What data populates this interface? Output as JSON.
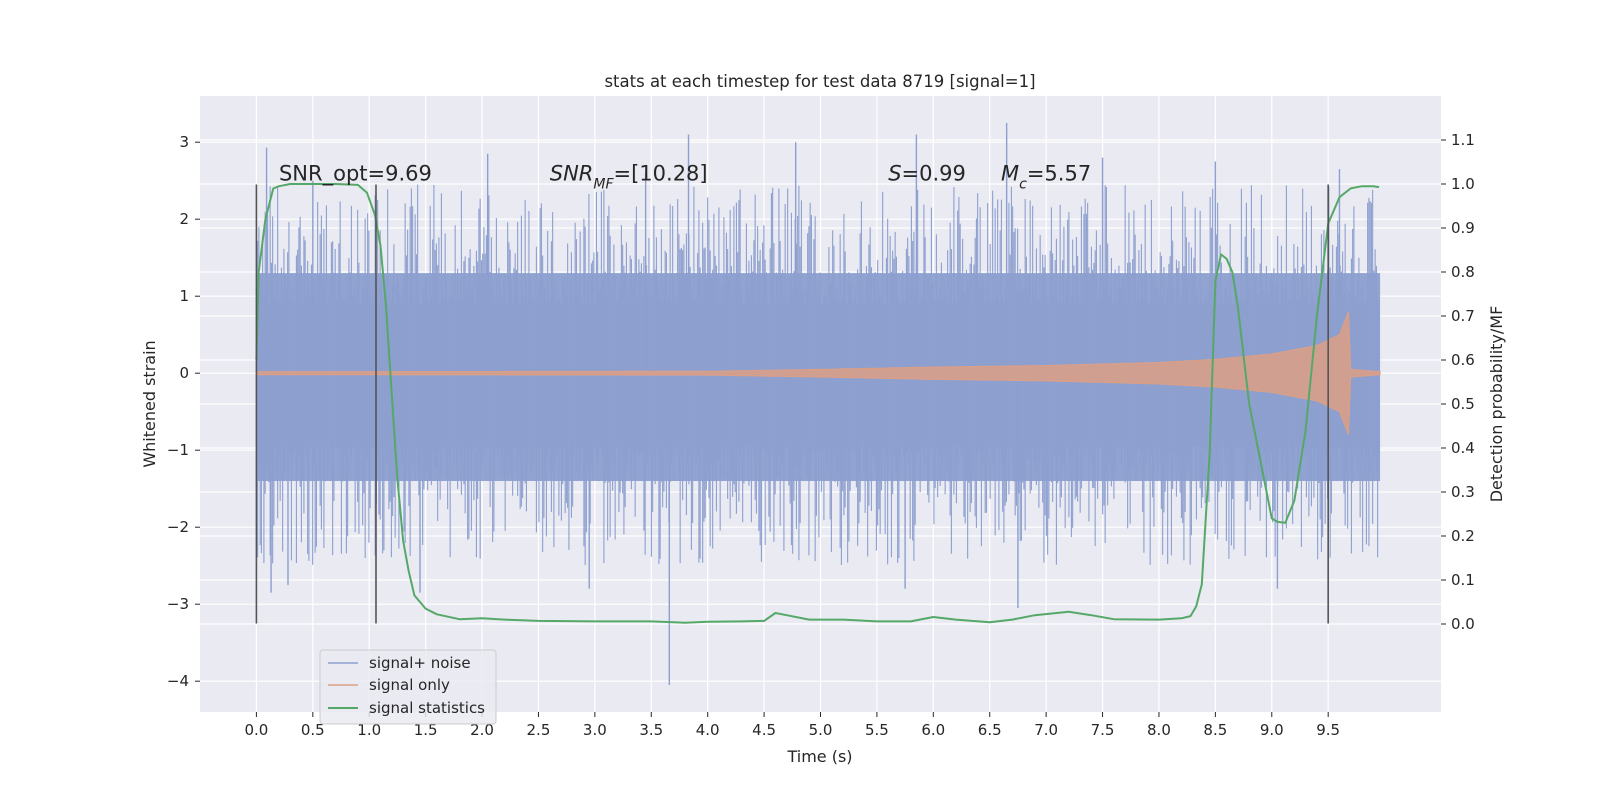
{
  "chart_data": {
    "type": "line",
    "title": "stats at each timestep for test data 8719 [signal=1]",
    "xlabel": "Time (s)",
    "ylabel_left": "Whitened strain",
    "ylabel_right": "Detection probability/MF",
    "xlim": [
      -0.5,
      10.5
    ],
    "ylim_left": [
      -4.4,
      3.6
    ],
    "ylim_right": [
      -0.2,
      1.2
    ],
    "x_ticks": [
      0.0,
      0.5,
      1.0,
      1.5,
      2.0,
      2.5,
      3.0,
      3.5,
      4.0,
      4.5,
      5.0,
      5.5,
      6.0,
      6.5,
      7.0,
      7.5,
      8.0,
      8.5,
      9.0,
      9.5
    ],
    "x_tick_labels": [
      "0.0",
      "0.5",
      "1.0",
      "1.5",
      "2.0",
      "2.5",
      "3.0",
      "3.5",
      "4.0",
      "4.5",
      "5.0",
      "5.5",
      "6.0",
      "6.5",
      "7.0",
      "7.5",
      "8.0",
      "8.5",
      "9.0",
      "9.5"
    ],
    "y_left_ticks": [
      -4,
      -3,
      -2,
      -1,
      0,
      1,
      2,
      3
    ],
    "y_left_tick_labels": [
      "−4",
      "−3",
      "−2",
      "−1",
      "0",
      "1",
      "2",
      "3"
    ],
    "y_right_ticks": [
      0.0,
      0.1,
      0.2,
      0.3,
      0.4,
      0.5,
      0.6,
      0.7,
      0.8,
      0.9,
      1.0,
      1.1
    ],
    "y_right_tick_labels": [
      "0.0",
      "0.1",
      "0.2",
      "0.3",
      "0.4",
      "0.5",
      "0.6",
      "0.7",
      "0.8",
      "0.9",
      "1.0",
      "1.1"
    ],
    "grid": true,
    "legend_position": "lower-left",
    "annotations": [
      {
        "parts": [
          {
            "text": "SNR_opt=9.69"
          }
        ],
        "x": 0.2,
        "y": 2.5
      },
      {
        "parts": [
          {
            "text": "SNR",
            "italic": true
          },
          {
            "text": "MF",
            "italic": true,
            "sub": true
          },
          {
            "text": "=[10.28]"
          }
        ],
        "x": 2.6,
        "y": 2.5
      },
      {
        "parts": [
          {
            "text": "S",
            "italic": true
          },
          {
            "text": "=0.99"
          }
        ],
        "x": 5.6,
        "y": 2.5
      },
      {
        "parts": [
          {
            "text": "M",
            "italic": true
          },
          {
            "text": "c",
            "italic": true,
            "sub": true
          },
          {
            "text": "=5.57"
          }
        ],
        "x": 6.6,
        "y": 2.5
      }
    ],
    "vertical_markers": {
      "x": [
        0.0,
        1.06,
        9.5
      ],
      "y_range": [
        -3.25,
        2.45
      ],
      "color": "#555555"
    },
    "series": [
      {
        "name": "signal+ noise",
        "color": "#8c9fcf",
        "axis": "left",
        "noise_model": {
          "t_start": 0.0,
          "t_end": 9.96,
          "band_low": -1.4,
          "band_high": 1.3
        },
        "peaks": [
          {
            "x": 0.09,
            "y": 2.93
          },
          {
            "x": 0.13,
            "y": -2.85
          },
          {
            "x": 0.28,
            "y": -2.75
          },
          {
            "x": 0.5,
            "y": 2.5
          },
          {
            "x": 1.45,
            "y": -2.85
          },
          {
            "x": 2.05,
            "y": 2.85
          },
          {
            "x": 2.95,
            "y": -2.8
          },
          {
            "x": 3.45,
            "y": 2.6
          },
          {
            "x": 3.66,
            "y": -4.05
          },
          {
            "x": 3.83,
            "y": 3.1
          },
          {
            "x": 4.78,
            "y": 3.0
          },
          {
            "x": 5.85,
            "y": 3.1
          },
          {
            "x": 5.75,
            "y": -2.8
          },
          {
            "x": 6.65,
            "y": 3.25
          },
          {
            "x": 6.75,
            "y": -3.05
          },
          {
            "x": 7.5,
            "y": 2.8
          },
          {
            "x": 8.5,
            "y": 2.75
          },
          {
            "x": 9.05,
            "y": -2.8
          },
          {
            "x": 9.6,
            "y": 2.65
          }
        ]
      },
      {
        "name": "signal only",
        "color": "#dd9f85",
        "axis": "left",
        "envelope": [
          {
            "x": 0.0,
            "a": 0.02
          },
          {
            "x": 4.0,
            "a": 0.025
          },
          {
            "x": 5.0,
            "a": 0.05
          },
          {
            "x": 6.0,
            "a": 0.08
          },
          {
            "x": 7.0,
            "a": 0.1
          },
          {
            "x": 8.0,
            "a": 0.14
          },
          {
            "x": 8.5,
            "a": 0.18
          },
          {
            "x": 9.0,
            "a": 0.25
          },
          {
            "x": 9.4,
            "a": 0.36
          },
          {
            "x": 9.6,
            "a": 0.5
          },
          {
            "x": 9.68,
            "a": 0.8
          },
          {
            "x": 9.7,
            "a": 0.05
          },
          {
            "x": 9.96,
            "a": 0.02
          }
        ]
      },
      {
        "name": "signal statistics",
        "color": "#55a868",
        "axis": "right",
        "x": [
          0.0,
          0.02,
          0.08,
          0.15,
          0.2,
          0.3,
          0.5,
          0.7,
          0.9,
          0.98,
          1.05,
          1.1,
          1.15,
          1.2,
          1.25,
          1.3,
          1.35,
          1.4,
          1.5,
          1.6,
          1.8,
          2.0,
          2.2,
          2.5,
          3.0,
          3.5,
          3.8,
          4.0,
          4.3,
          4.5,
          4.6,
          4.7,
          4.9,
          5.2,
          5.5,
          5.8,
          6.0,
          6.2,
          6.5,
          6.7,
          6.9,
          7.2,
          7.4,
          7.6,
          8.0,
          8.2,
          8.28,
          8.33,
          8.38,
          8.45,
          8.5,
          8.55,
          8.6,
          8.65,
          8.7,
          8.8,
          8.9,
          9.0,
          9.05,
          9.12,
          9.2,
          9.3,
          9.4,
          9.5,
          9.6,
          9.7,
          9.8,
          9.9,
          9.95
        ],
        "y": [
          0.6,
          0.8,
          0.92,
          0.99,
          0.995,
          1.0,
          1.0,
          1.0,
          0.998,
          0.98,
          0.93,
          0.86,
          0.72,
          0.52,
          0.33,
          0.19,
          0.12,
          0.065,
          0.035,
          0.022,
          0.011,
          0.013,
          0.01,
          0.007,
          0.006,
          0.006,
          0.003,
          0.005,
          0.006,
          0.007,
          0.025,
          0.02,
          0.01,
          0.01,
          0.006,
          0.006,
          0.016,
          0.01,
          0.004,
          0.01,
          0.02,
          0.028,
          0.02,
          0.011,
          0.01,
          0.013,
          0.018,
          0.04,
          0.09,
          0.39,
          0.78,
          0.84,
          0.83,
          0.8,
          0.72,
          0.5,
          0.37,
          0.24,
          0.232,
          0.23,
          0.28,
          0.44,
          0.7,
          0.91,
          0.97,
          0.99,
          0.995,
          0.995,
          0.993
        ]
      }
    ]
  }
}
